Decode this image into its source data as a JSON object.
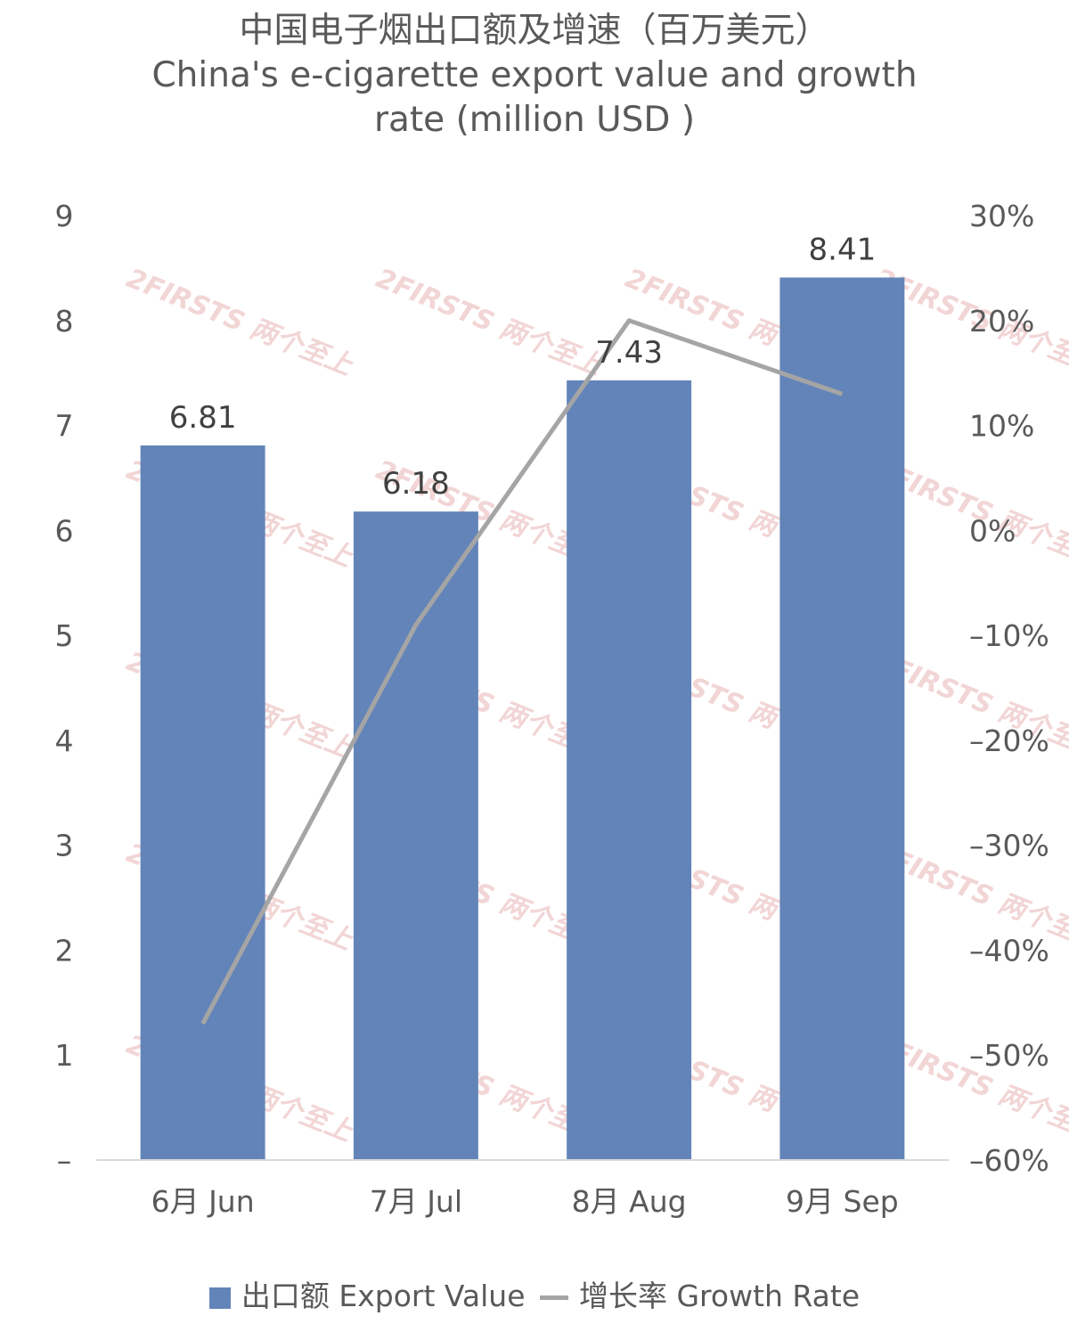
{
  "title_lines": [
    "中国电子烟出口额及增速（百万美元）",
    "China's e-cigarette export value and growth",
    "rate (million USD )"
  ],
  "colors": {
    "bar": "#6384B8",
    "line": "#A5A5A5",
    "axis": "#D9D9D9"
  },
  "watermark": "2FIRSTS 两个至上",
  "chart_data": {
    "type": "bar",
    "categories": [
      "6月 Jun",
      "7月 Jul",
      "8月 Aug",
      "9月 Sep"
    ],
    "series": [
      {
        "name": "出口额 Export Value",
        "type": "bar",
        "axis": "left",
        "values": [
          6.81,
          6.18,
          7.43,
          8.41
        ],
        "data_labels": [
          "6.81",
          "6.18",
          "7.43",
          "8.41"
        ]
      },
      {
        "name": "增长率 Growth Rate",
        "type": "line",
        "axis": "right",
        "values": [
          -0.47,
          -0.09,
          0.2,
          0.13
        ]
      }
    ],
    "left_axis": {
      "ylim": [
        0,
        9
      ],
      "ticks": [
        "–",
        "1",
        "2",
        "3",
        "4",
        "5",
        "6",
        "7",
        "8",
        "9"
      ]
    },
    "right_axis": {
      "ylim": [
        -0.6,
        0.3
      ],
      "ticks": [
        "–60%",
        "–50%",
        "–40%",
        "–30%",
        "–20%",
        "–10%",
        "0%",
        "10%",
        "20%",
        "30%"
      ]
    },
    "grid": false,
    "legend": "bottom"
  }
}
